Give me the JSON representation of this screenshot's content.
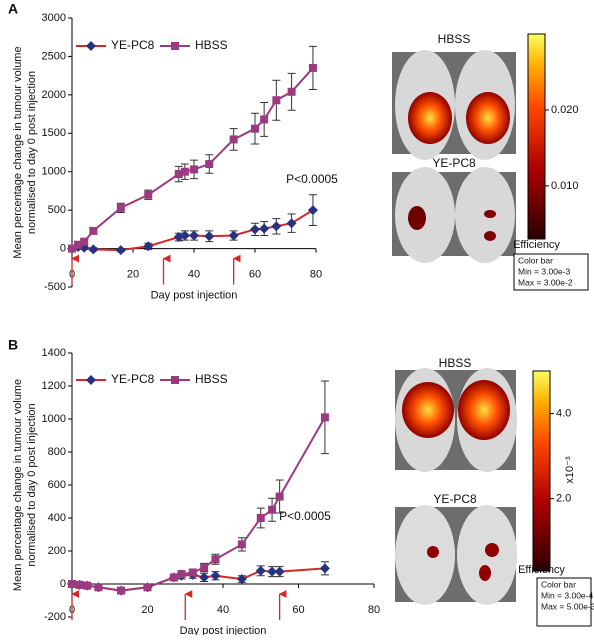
{
  "chart_data": [
    {
      "type": "line",
      "panel_label": "A",
      "y_label": [
        "Mean percentage change in tumour volume",
        "normalised to day 0 post injection"
      ],
      "x_label": "Day post injection",
      "annotation": "P<0.0005",
      "xlim": [
        0,
        80
      ],
      "xticks": [
        0,
        20,
        40,
        60,
        80
      ],
      "ylim": [
        -500,
        3000
      ],
      "yticks": [
        -500,
        0,
        500,
        1000,
        1500,
        2000,
        2500,
        3000
      ],
      "injection_days": [
        0,
        30,
        53
      ],
      "x": [
        0,
        2,
        4,
        7,
        16,
        25,
        35,
        37,
        40,
        45,
        53,
        60,
        63,
        67,
        72,
        79
      ],
      "series": [
        {
          "name": "YE-PC8",
          "marker": "diamond",
          "color": "#27337f",
          "line_color": "#d62728",
          "values": [
            0,
            20,
            10,
            -10,
            -20,
            30,
            150,
            170,
            170,
            160,
            170,
            250,
            260,
            290,
            330,
            500
          ],
          "errors": [
            20,
            20,
            20,
            20,
            20,
            40,
            50,
            60,
            60,
            70,
            60,
            80,
            90,
            100,
            120,
            200
          ]
        },
        {
          "name": "HBSS",
          "marker": "square",
          "color": "#9c3a80",
          "line_color": "#9c3a80",
          "values": [
            0,
            50,
            90,
            230,
            530,
            700,
            970,
            1000,
            1030,
            1100,
            1420,
            1560,
            1680,
            1930,
            2040,
            2350
          ],
          "errors": [
            20,
            30,
            30,
            40,
            60,
            60,
            100,
            100,
            120,
            120,
            140,
            200,
            220,
            260,
            240,
            280
          ]
        }
      ]
    },
    {
      "type": "line",
      "panel_label": "B",
      "y_label": [
        "Mean percentage change in tumour volume",
        "normalised to day 0 post injection"
      ],
      "x_label": "Day post injection",
      "annotation": "P<0.0005",
      "xlim": [
        0,
        80
      ],
      "xticks": [
        0,
        20,
        40,
        60,
        80
      ],
      "ylim": [
        -200,
        1400
      ],
      "yticks": [
        -200,
        0,
        200,
        400,
        600,
        800,
        1000,
        1200,
        1400
      ],
      "injection_days": [
        0,
        30,
        55
      ],
      "x": [
        0,
        2,
        4,
        7,
        13,
        20,
        27,
        29,
        32,
        35,
        38,
        45,
        50,
        53,
        55,
        67
      ],
      "series": [
        {
          "name": "YE-PC8",
          "marker": "diamond",
          "color": "#27337f",
          "line_color": "#d62728",
          "values": [
            0,
            -5,
            -10,
            -20,
            -40,
            -20,
            40,
            50,
            55,
            40,
            50,
            30,
            80,
            75,
            75,
            95
          ],
          "errors": [
            20,
            20,
            15,
            15,
            15,
            15,
            15,
            20,
            20,
            25,
            25,
            20,
            30,
            30,
            30,
            40
          ]
        },
        {
          "name": "HBSS",
          "marker": "square",
          "color": "#9c3a80",
          "line_color": "#9c3a80",
          "values": [
            0,
            -5,
            -10,
            -20,
            -40,
            -20,
            40,
            60,
            70,
            100,
            150,
            240,
            400,
            450,
            530,
            1010
          ],
          "errors": [
            20,
            20,
            15,
            15,
            15,
            15,
            20,
            20,
            20,
            25,
            30,
            40,
            60,
            70,
            100,
            220
          ]
        }
      ]
    }
  ],
  "side_panels": [
    {
      "image_labels": [
        "HBSS",
        "YE-PC8"
      ],
      "clim": [
        0.003,
        0.03
      ],
      "colorbar_ticks": [
        {
          "value": 0.02,
          "label": "0.020"
        },
        {
          "value": 0.01,
          "label": "0.010"
        }
      ],
      "colorbar_title": "Efficiency",
      "info": [
        "Color bar",
        "Min = 3.00e-3",
        "Max = 3.00e-2"
      ]
    },
    {
      "image_labels": [
        "HBSS",
        "YE-PC8"
      ],
      "clim": [
        0.0003,
        0.005
      ],
      "colorbar_ticks": [
        {
          "value": 0.004,
          "label": "4.0"
        },
        {
          "value": 0.002,
          "label": "2.0"
        }
      ],
      "colorbar_exponent": "x10⁻³",
      "colorbar_title": "Efficiency",
      "info": [
        "Color bar",
        "Min = 3.00e-4",
        "Max = 5.00e-3"
      ]
    }
  ]
}
